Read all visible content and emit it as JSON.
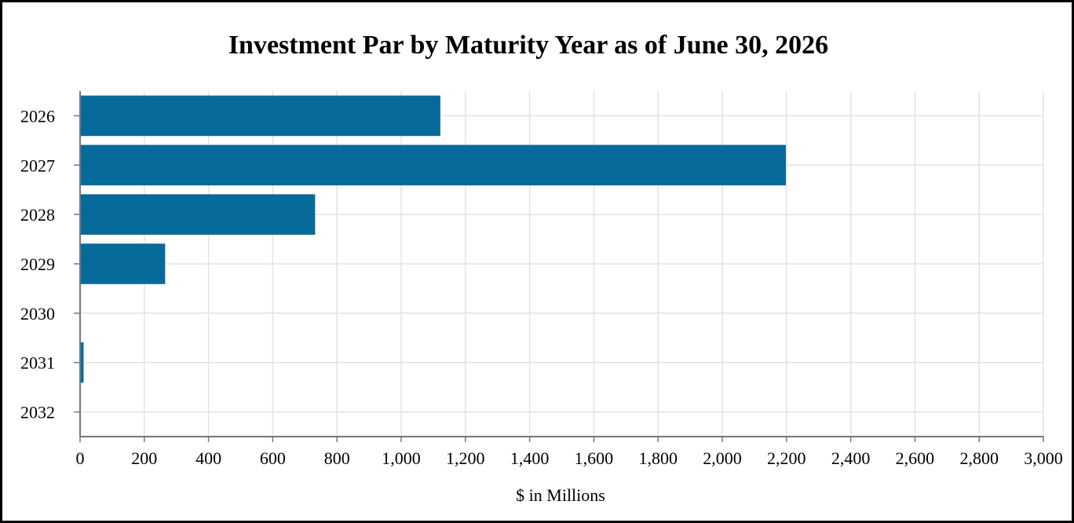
{
  "chart_data": {
    "type": "bar",
    "orientation": "horizontal",
    "title": "Investment Par by Maturity Year as of June 30, 2026",
    "xlabel": "$ in Millions",
    "ylabel": "",
    "categories": [
      "2026",
      "2027",
      "2028",
      "2029",
      "2030",
      "2031",
      "2032"
    ],
    "values": [
      1122,
      2198,
      732,
      265,
      0,
      11,
      0
    ],
    "xlim": [
      0,
      3000
    ],
    "xticks": [
      "0",
      "200",
      "400",
      "600",
      "800",
      "1,000",
      "1,200",
      "1,400",
      "1,600",
      "1,800",
      "2,000",
      "2,200",
      "2,400",
      "2,600",
      "2,800",
      "3,000"
    ],
    "grid": true,
    "legend": "none",
    "colors": {
      "bar": "#066b9b",
      "grid": "#e3e3e3",
      "axis": "#777777"
    }
  }
}
